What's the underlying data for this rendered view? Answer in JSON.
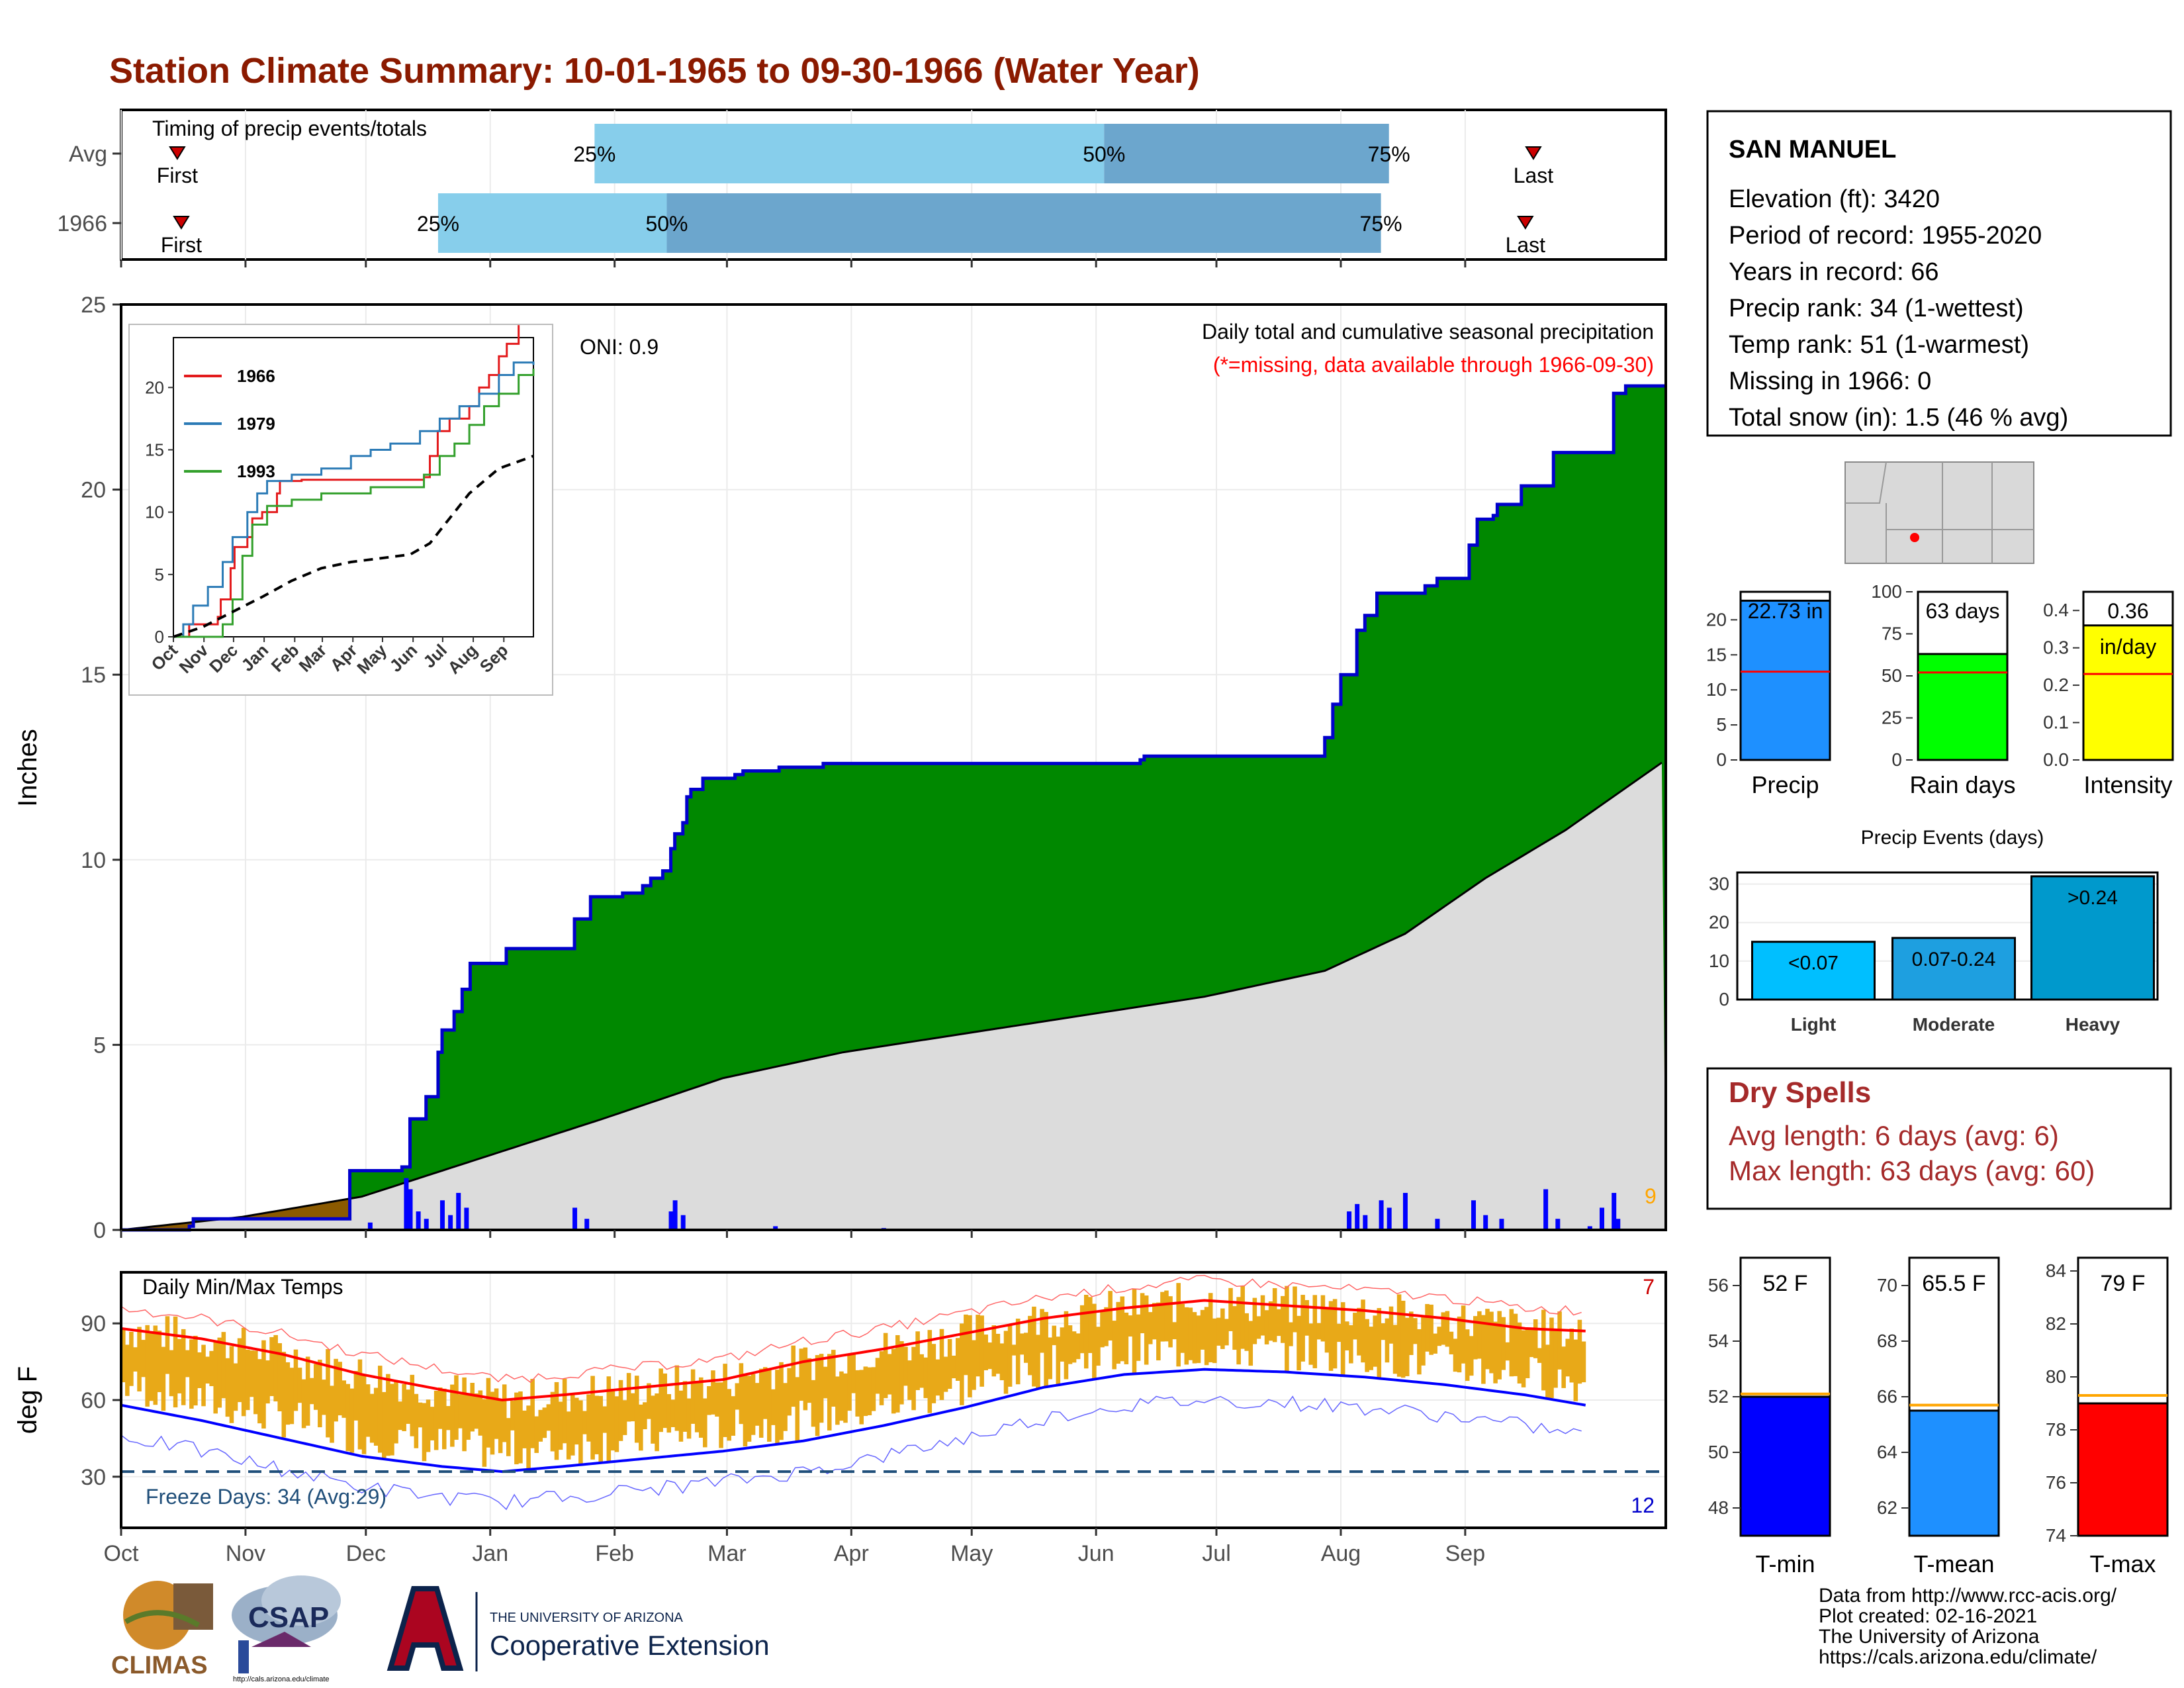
{
  "title": "Station Climate Summary: 10-01-1965 to 09-30-1966 (Water Year)",
  "months": [
    "Oct",
    "Nov",
    "Dec",
    "Jan",
    "Feb",
    "Mar",
    "Apr",
    "May",
    "Jun",
    "Jul",
    "Aug",
    "Sep"
  ],
  "colors": {
    "title": "#8B1A00",
    "green": "#008800",
    "blue": "#0000CC",
    "lightblue": "#87CEEB",
    "midblue": "#6CA6CD",
    "gold": "#E8A918",
    "grey": "#DCDCDC",
    "brown": "#8B5A00"
  },
  "timing": {
    "title": "Timing of precip events/totals",
    "rows": [
      {
        "label": "Avg",
        "first": "First",
        "last": "Last",
        "p25": "25%",
        "p50": "50%",
        "p75": "75%",
        "first_doy": 14,
        "p25_doy": 118,
        "p50_doy": 245,
        "p75_doy": 316,
        "last_doy": 352
      },
      {
        "label": "1966",
        "first": "First",
        "last": "Last",
        "p25": "25%",
        "p50": "50%",
        "p75": "75%",
        "first_doy": 15,
        "p25_doy": 79,
        "p50_doy": 136,
        "p75_doy": 314,
        "last_doy": 350
      }
    ]
  },
  "chart_data": [
    {
      "type": "area",
      "name": "precip",
      "title": "Daily total and cumulative seasonal precipitation",
      "subtitle": "(*=missing, data available through 1966-09-30)",
      "oni": "ONI: 0.9",
      "ylabel": "Inches",
      "ylim": [
        0,
        25
      ],
      "yticks": [
        0,
        5,
        10,
        15,
        20,
        25
      ],
      "count_label": "9",
      "cumulative_1966": [
        [
          0,
          0
        ],
        [
          16,
          0
        ],
        [
          17,
          0.1
        ],
        [
          18,
          0.3
        ],
        [
          55,
          0.3
        ],
        [
          57,
          1.6
        ],
        [
          70,
          1.7
        ],
        [
          72,
          3.0
        ],
        [
          76,
          3.6
        ],
        [
          79,
          4.8
        ],
        [
          80,
          5.4
        ],
        [
          83,
          5.9
        ],
        [
          85,
          6.5
        ],
        [
          87,
          7.2
        ],
        [
          96,
          7.6
        ],
        [
          112,
          7.6
        ],
        [
          113,
          8.4
        ],
        [
          117,
          9.0
        ],
        [
          125,
          9.1
        ],
        [
          130,
          9.3
        ],
        [
          132,
          9.5
        ],
        [
          135,
          9.7
        ],
        [
          137,
          10.3
        ],
        [
          138,
          10.7
        ],
        [
          140,
          11.0
        ],
        [
          141,
          11.7
        ],
        [
          142,
          11.9
        ],
        [
          145,
          12.2
        ],
        [
          150,
          12.2
        ],
        [
          153,
          12.3
        ],
        [
          155,
          12.4
        ],
        [
          164,
          12.5
        ],
        [
          175,
          12.6
        ],
        [
          190,
          12.6
        ],
        [
          254,
          12.7
        ],
        [
          255,
          12.8
        ],
        [
          299,
          12.8
        ],
        [
          300,
          13.3
        ],
        [
          302,
          14.2
        ],
        [
          304,
          15.0
        ],
        [
          308,
          16.2
        ],
        [
          310,
          16.6
        ],
        [
          313,
          17.2
        ],
        [
          325,
          17.4
        ],
        [
          328,
          17.6
        ],
        [
          336,
          18.5
        ],
        [
          338,
          19.2
        ],
        [
          342,
          19.3
        ],
        [
          343,
          19.6
        ],
        [
          349,
          20.1
        ],
        [
          357,
          21.0
        ],
        [
          370,
          21.0
        ],
        [
          372,
          22.6
        ],
        [
          375,
          22.8
        ],
        [
          385,
          22.8
        ]
      ],
      "average_cumulative": [
        [
          0,
          0
        ],
        [
          30,
          0.35
        ],
        [
          60,
          0.9
        ],
        [
          90,
          1.95
        ],
        [
          120,
          3.0
        ],
        [
          150,
          4.1
        ],
        [
          180,
          4.8
        ],
        [
          210,
          5.3
        ],
        [
          240,
          5.8
        ],
        [
          270,
          6.3
        ],
        [
          300,
          7.0
        ],
        [
          320,
          8.0
        ],
        [
          340,
          9.5
        ],
        [
          360,
          10.8
        ],
        [
          385,
          12.7
        ]
      ],
      "daily_bars": [
        [
          62,
          0.2
        ],
        [
          71,
          1.4
        ],
        [
          72,
          1.1
        ],
        [
          74,
          0.5
        ],
        [
          76,
          0.3
        ],
        [
          80,
          0.8
        ],
        [
          82,
          0.4
        ],
        [
          84,
          1.0
        ],
        [
          86,
          0.6
        ],
        [
          113,
          0.6
        ],
        [
          116,
          0.3
        ],
        [
          137,
          0.5
        ],
        [
          138,
          0.8
        ],
        [
          140,
          0.4
        ],
        [
          163,
          0.1
        ],
        [
          190,
          0.05
        ],
        [
          306,
          0.5
        ],
        [
          308,
          0.7
        ],
        [
          310,
          0.4
        ],
        [
          314,
          0.8
        ],
        [
          316,
          0.6
        ],
        [
          320,
          1.0
        ],
        [
          328,
          0.3
        ],
        [
          337,
          0.8
        ],
        [
          340,
          0.4
        ],
        [
          344,
          0.3
        ],
        [
          355,
          1.1
        ],
        [
          358,
          0.3
        ],
        [
          366,
          0.1
        ],
        [
          369,
          0.6
        ],
        [
          372,
          1.0
        ],
        [
          373,
          0.3
        ]
      ]
    },
    {
      "type": "line",
      "name": "inset",
      "series": [
        {
          "name": "1966",
          "values": [
            [
              0,
              0
            ],
            [
              15,
              0
            ],
            [
              16,
              1.0
            ],
            [
              45,
              1.6
            ],
            [
              48,
              3.0
            ],
            [
              58,
              5.5
            ],
            [
              62,
              7.2
            ],
            [
              75,
              8.0
            ],
            [
              80,
              9.5
            ],
            [
              90,
              10.0
            ],
            [
              105,
              11.5
            ],
            [
              108,
              12.5
            ],
            [
              130,
              12.6
            ],
            [
              190,
              12.6
            ],
            [
              254,
              12.8
            ],
            [
              260,
              14.5
            ],
            [
              268,
              16.5
            ],
            [
              280,
              17.5
            ],
            [
              300,
              18.5
            ],
            [
              310,
              20.0
            ],
            [
              320,
              21.0
            ],
            [
              330,
              22.5
            ],
            [
              338,
              23.5
            ],
            [
              350,
              25.0
            ]
          ]
        },
        {
          "name": "1979",
          "values": [
            [
              0,
              0
            ],
            [
              10,
              1.0
            ],
            [
              20,
              2.5
            ],
            [
              35,
              4.0
            ],
            [
              50,
              6.0
            ],
            [
              60,
              8.0
            ],
            [
              75,
              10.0
            ],
            [
              85,
              11.5
            ],
            [
              95,
              12.5
            ],
            [
              120,
              13.0
            ],
            [
              150,
              13.5
            ],
            [
              180,
              14.5
            ],
            [
              200,
              15.0
            ],
            [
              220,
              15.5
            ],
            [
              250,
              16.5
            ],
            [
              270,
              17.5
            ],
            [
              290,
              18.5
            ],
            [
              310,
              19.5
            ],
            [
              330,
              21.0
            ],
            [
              345,
              22.0
            ],
            [
              365,
              21.8
            ]
          ]
        },
        {
          "name": "1993",
          "values": [
            [
              0,
              0
            ],
            [
              45,
              0
            ],
            [
              50,
              1.0
            ],
            [
              60,
              3.0
            ],
            [
              70,
              6.5
            ],
            [
              80,
              9.0
            ],
            [
              95,
              10.5
            ],
            [
              120,
              11.0
            ],
            [
              150,
              11.5
            ],
            [
              200,
              12.0
            ],
            [
              254,
              13.0
            ],
            [
              270,
              14.5
            ],
            [
              285,
              15.5
            ],
            [
              300,
              17.0
            ],
            [
              315,
              18.5
            ],
            [
              330,
              19.5
            ],
            [
              350,
              21.0
            ],
            [
              365,
              21.5
            ]
          ]
        },
        {
          "name": "avg",
          "values": [
            [
              0,
              0
            ],
            [
              30,
              0.8
            ],
            [
              60,
              2.0
            ],
            [
              90,
              3.2
            ],
            [
              120,
              4.5
            ],
            [
              150,
              5.5
            ],
            [
              180,
              6.0
            ],
            [
              210,
              6.3
            ],
            [
              240,
              6.6
            ],
            [
              260,
              7.5
            ],
            [
              280,
              9.5
            ],
            [
              300,
              11.5
            ],
            [
              330,
              13.5
            ],
            [
              365,
              14.5
            ]
          ]
        }
      ],
      "ylim": [
        0,
        24
      ],
      "yticks": [
        0,
        5,
        10,
        15,
        20
      ],
      "ticklabels": [
        "Oct",
        "Nov",
        "Dec",
        "Jan",
        "Feb",
        "Mar",
        "Apr",
        "May",
        "Jun",
        "Jul",
        "Aug",
        "Sep"
      ]
    },
    {
      "type": "line",
      "name": "temps",
      "title": "Daily Min/Max Temps",
      "ylabel": "deg F",
      "ylim": [
        10,
        110
      ],
      "yticks": [
        30,
        60,
        90
      ],
      "freeze_label": "Freeze Days: 34 (Avg:29)",
      "freeze_line": 32,
      "hot_count": "7",
      "cold_count": "12",
      "avg_max": [
        [
          0,
          88
        ],
        [
          20,
          84
        ],
        [
          40,
          78
        ],
        [
          60,
          70
        ],
        [
          80,
          64
        ],
        [
          95,
          60
        ],
        [
          110,
          62
        ],
        [
          130,
          65
        ],
        [
          150,
          68
        ],
        [
          170,
          75
        ],
        [
          190,
          80
        ],
        [
          210,
          86
        ],
        [
          230,
          92
        ],
        [
          250,
          96
        ],
        [
          270,
          99
        ],
        [
          290,
          97
        ],
        [
          310,
          95
        ],
        [
          330,
          92
        ],
        [
          350,
          88
        ],
        [
          365,
          87
        ]
      ],
      "avg_min": [
        [
          0,
          58
        ],
        [
          20,
          52
        ],
        [
          40,
          45
        ],
        [
          60,
          38
        ],
        [
          80,
          34
        ],
        [
          95,
          32
        ],
        [
          110,
          34
        ],
        [
          130,
          37
        ],
        [
          150,
          40
        ],
        [
          170,
          44
        ],
        [
          190,
          50
        ],
        [
          210,
          57
        ],
        [
          230,
          65
        ],
        [
          250,
          70
        ],
        [
          270,
          72
        ],
        [
          290,
          71
        ],
        [
          310,
          69
        ],
        [
          330,
          66
        ],
        [
          350,
          62
        ],
        [
          365,
          58
        ]
      ]
    },
    {
      "type": "bar",
      "name": "summary_bars",
      "bars": [
        {
          "label": "Precip",
          "value_text": "22.73 in",
          "value": 22.73,
          "avg": 12.6,
          "max": 24,
          "ticks": [
            0,
            5,
            10,
            15,
            20
          ],
          "color": "#1E90FF"
        },
        {
          "label": "Rain days",
          "value_text": "63 days",
          "value": 63,
          "avg": 52,
          "max": 100,
          "ticks": [
            0,
            25,
            50,
            75,
            100
          ],
          "color": "#00FF00"
        },
        {
          "label": "Intensity",
          "value_text": "0.36",
          "value2_text": "in/day",
          "value": 0.36,
          "avg": 0.23,
          "max": 0.45,
          "ticks": [
            "0.0",
            "0.1",
            "0.2",
            "0.3",
            "0.4"
          ],
          "color": "#FFFF00"
        }
      ]
    },
    {
      "type": "bar",
      "name": "precip_events",
      "title": "Precip Events (days)",
      "categories": [
        "Light",
        "Moderate",
        "Heavy"
      ],
      "inner_labels": [
        "<0.07",
        "0.07-0.24",
        ">0.24"
      ],
      "values": [
        15,
        16,
        32
      ],
      "yticks": [
        0,
        10,
        20,
        30
      ]
    },
    {
      "type": "bar",
      "name": "temp_bars",
      "bars": [
        {
          "label": "T-min",
          "value_text": "52 F",
          "value": 52,
          "avg": 52.1,
          "min": 47,
          "max": 57,
          "ticks": [
            48,
            50,
            52,
            54,
            56
          ],
          "color": "#0000FF"
        },
        {
          "label": "T-mean",
          "value_text": "65.5 F",
          "value": 65.5,
          "avg": 65.7,
          "min": 61,
          "max": 71,
          "ticks": [
            62,
            64,
            66,
            68,
            70
          ],
          "color": "#1E90FF"
        },
        {
          "label": "T-max",
          "value_text": "79 F",
          "value": 79,
          "avg": 79.3,
          "min": 74,
          "max": 84.5,
          "ticks": [
            74,
            76,
            78,
            80,
            82,
            84
          ],
          "color": "#FF0000"
        }
      ]
    }
  ],
  "station": {
    "name": "SAN MANUEL",
    "lines": [
      "Elevation (ft): 3420",
      "Period of record: 1955-2020",
      "Years in record: 66",
      "Precip rank: 34 (1-wettest)",
      "Temp rank: 51 (1-warmest)",
      "Missing in 1966: 0",
      "Total snow (in): 1.5 (46 % avg)"
    ]
  },
  "dry_spells": {
    "title": "Dry Spells",
    "avg": "Avg length: 6 days (avg: 6)",
    "max": "Max length: 63 days (avg: 60)"
  },
  "footer": {
    "lines": [
      "Data from http://www.rcc-acis.org/",
      "Plot created: 02-16-2021",
      "The University of Arizona",
      "https://cals.arizona.edu/climate/"
    ],
    "logo1": "CLIMAS",
    "logo2": "CSAP",
    "logo2_sub": "http://cals.arizona.edu/climate",
    "logo3_top": "THE UNIVERSITY OF ARIZONA",
    "logo3_main": "Cooperative Extension"
  }
}
